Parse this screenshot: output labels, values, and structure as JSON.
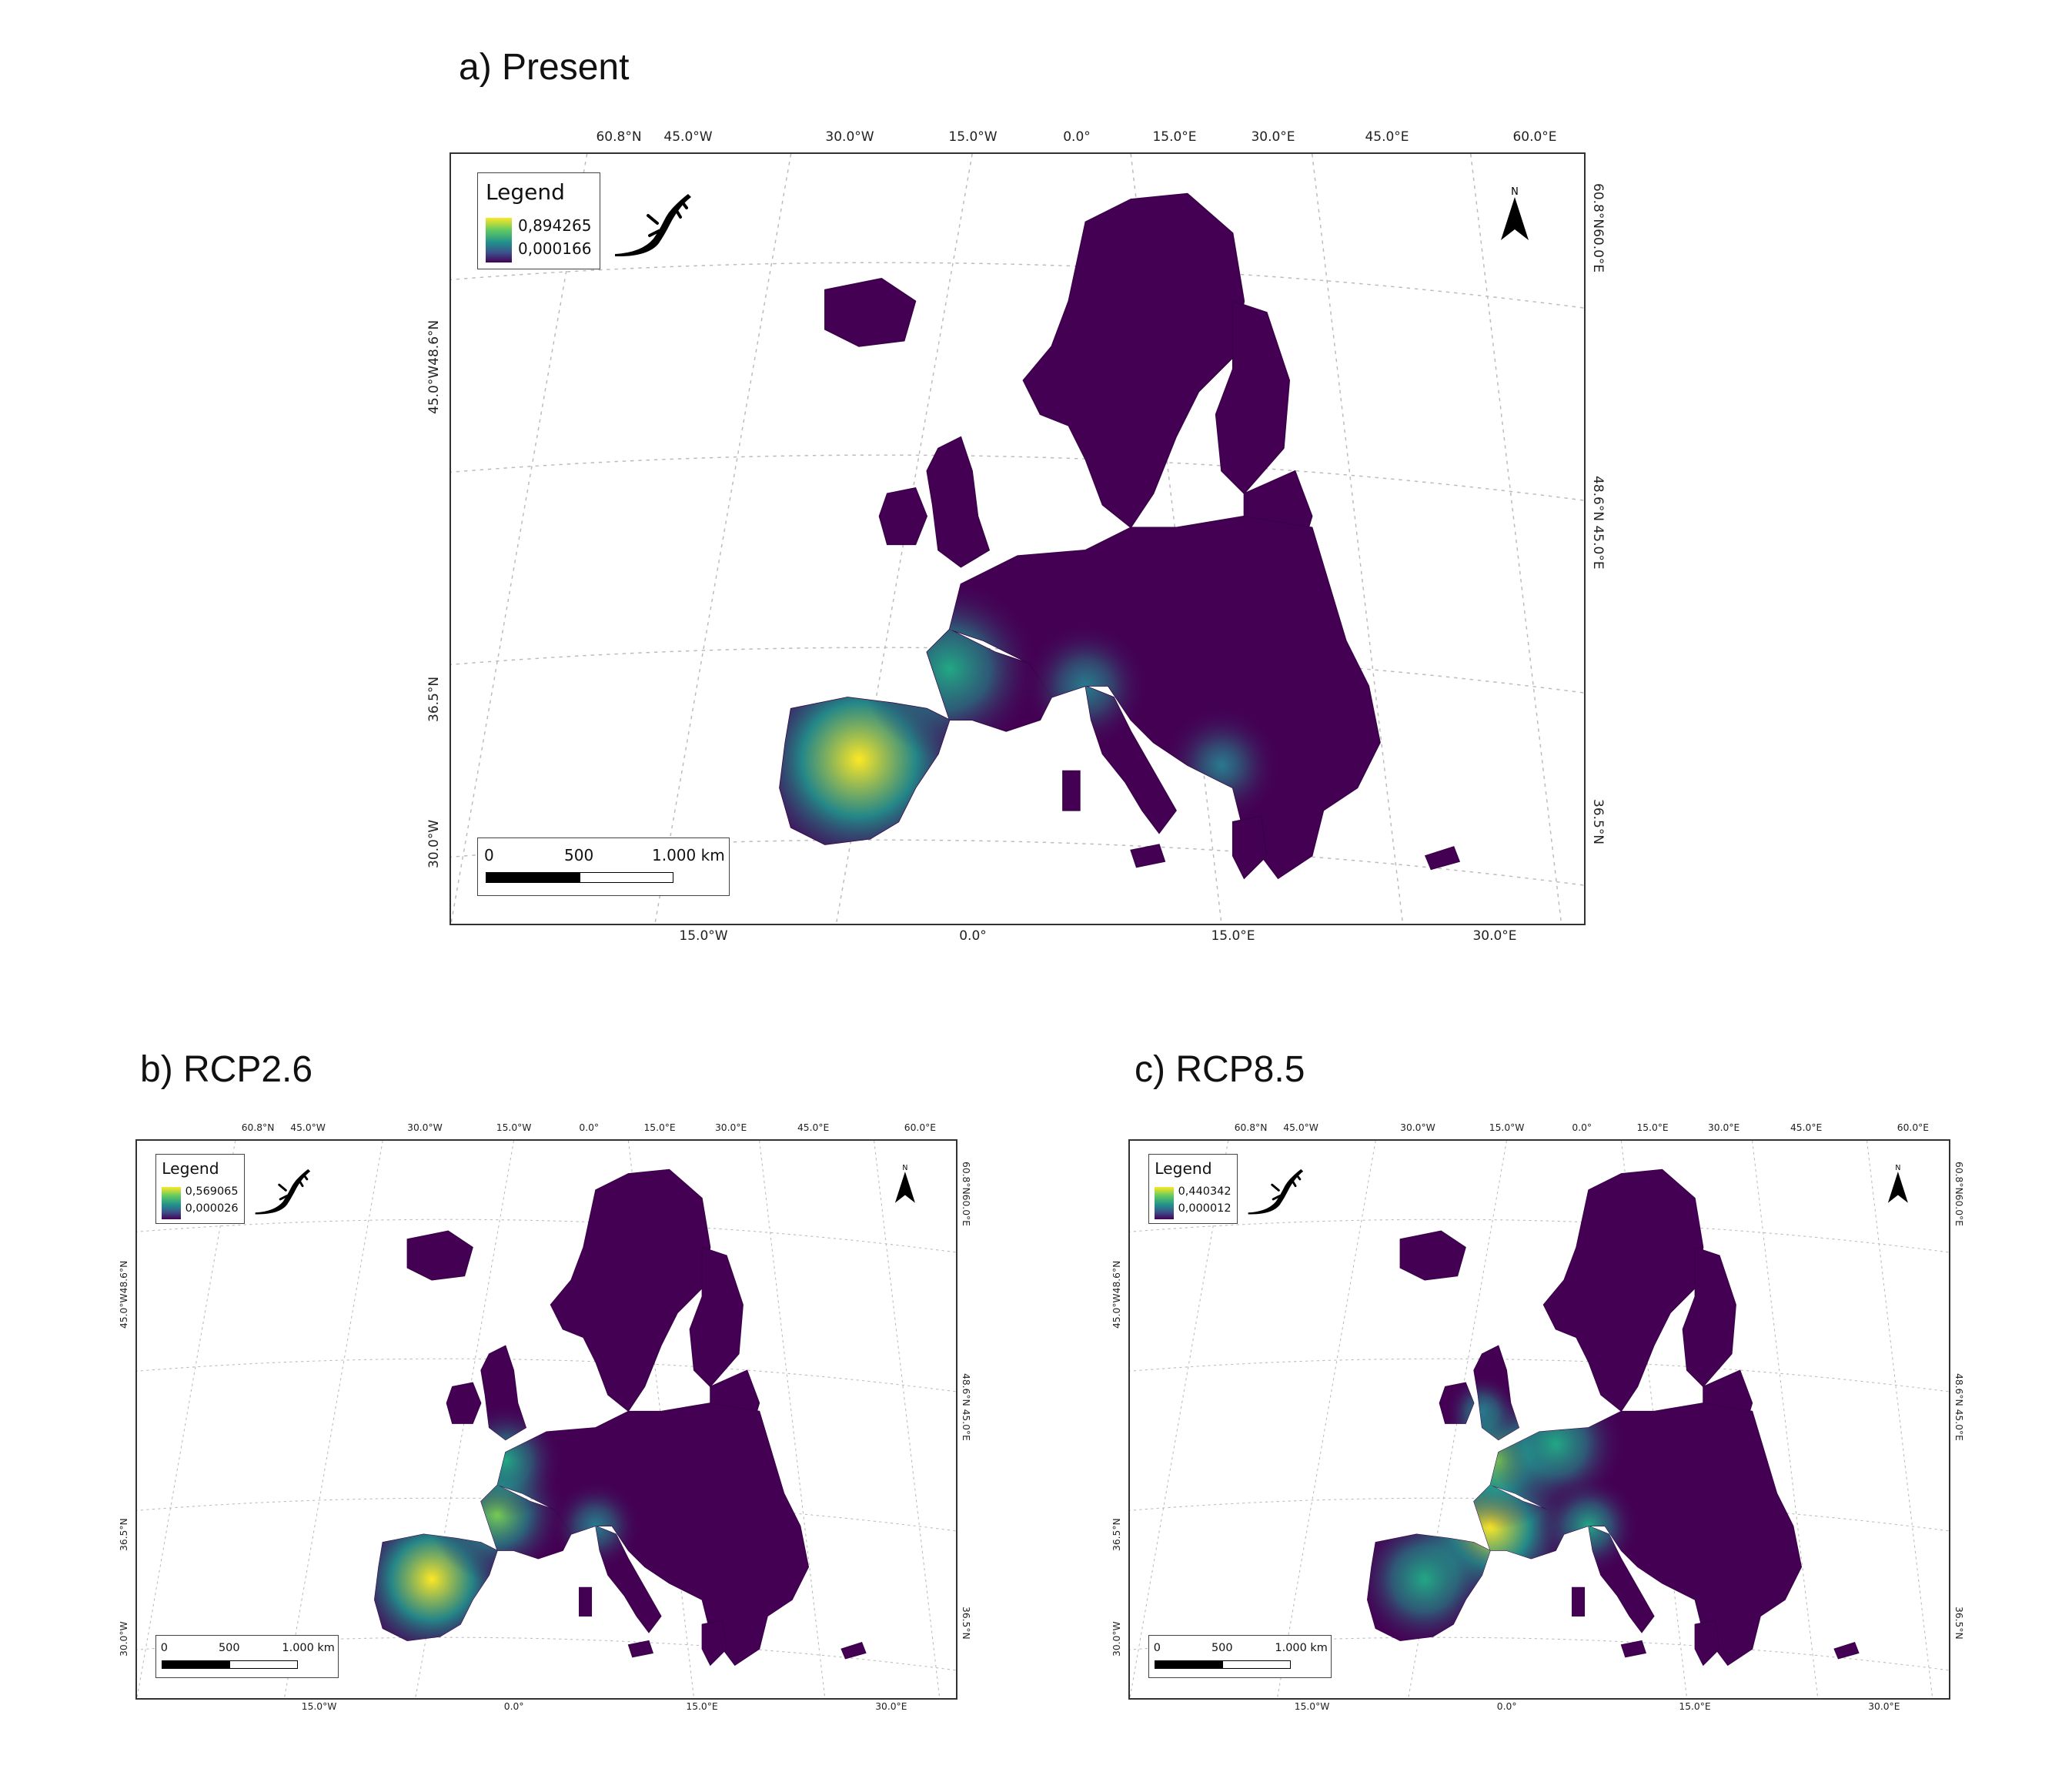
{
  "panels": [
    {
      "id": "a",
      "title": "a) Present",
      "legend": {
        "title": "Legend",
        "max": "0,894265",
        "min": "0,000166"
      },
      "scalebar": {
        "l0": "0",
        "l1": "500",
        "l2": "1.000 km"
      },
      "north": "N",
      "top_labels": [
        "60.8°N",
        "45.0°W",
        "30.0°W",
        "15.0°W",
        "0.0°",
        "15.0°E",
        "30.0°E",
        "45.0°E",
        "60.0°E"
      ],
      "bottom_labels": [
        "15.0°W",
        "0.0°",
        "15.0°E",
        "30.0°E"
      ],
      "left_labels": [
        "45.0°W48.6°N",
        "36.5°N",
        "30.0°W"
      ],
      "right_labels": [
        "60.8°N60.0°E",
        "48.6°N 45.0°E",
        "36.5°N"
      ],
      "hotspots": [
        {
          "region": "iberia",
          "intensity": 0.97
        },
        {
          "region": "france-southwest",
          "intensity": 0.55
        },
        {
          "region": "italy-north",
          "intensity": 0.3
        },
        {
          "region": "balkans",
          "intensity": 0.22
        }
      ]
    },
    {
      "id": "b",
      "title": "b) RCP2.6",
      "legend": {
        "title": "Legend",
        "max": "0,569065",
        "min": "0,000026"
      },
      "scalebar": {
        "l0": "0",
        "l1": "500",
        "l2": "1.000 km"
      },
      "north": "N",
      "top_labels": [
        "60.8°N",
        "45.0°W",
        "30.0°W",
        "15.0°W",
        "0.0°",
        "15.0°E",
        "30.0°E",
        "45.0°E",
        "60.0°E"
      ],
      "bottom_labels": [
        "15.0°W",
        "0.0°",
        "15.0°E",
        "30.0°E"
      ],
      "left_labels": [
        "45.0°W48.6°N",
        "36.5°N",
        "30.0°W"
      ],
      "right_labels": [
        "60.8°N60.0°E",
        "48.6°N 45.0°E",
        "36.5°N"
      ],
      "hotspots": [
        {
          "region": "iberia",
          "intensity": 0.95
        },
        {
          "region": "france-southwest",
          "intensity": 0.65
        },
        {
          "region": "france-north",
          "intensity": 0.45
        },
        {
          "region": "italy-north",
          "intensity": 0.3
        }
      ]
    },
    {
      "id": "c",
      "title": "c) RCP8.5",
      "legend": {
        "title": "Legend",
        "max": "0,440342",
        "min": "0,000012"
      },
      "scalebar": {
        "l0": "0",
        "l1": "500",
        "l2": "1.000 km"
      },
      "north": "N",
      "top_labels": [
        "60.8°N",
        "45.0°W",
        "30.0°W",
        "15.0°W",
        "0.0°",
        "15.0°E",
        "30.0°E",
        "45.0°E",
        "60.0°E"
      ],
      "bottom_labels": [
        "15.0°W",
        "0.0°",
        "15.0°E",
        "30.0°E"
      ],
      "left_labels": [
        "45.0°W48.6°N",
        "36.5°N",
        "30.0°W"
      ],
      "right_labels": [
        "60.8°N60.0°E",
        "48.6°N 45.0°E",
        "36.5°N"
      ],
      "hotspots": [
        {
          "region": "france-south",
          "intensity": 1.0
        },
        {
          "region": "france-north",
          "intensity": 0.75
        },
        {
          "region": "germany-west",
          "intensity": 0.55
        },
        {
          "region": "iberia",
          "intensity": 0.55
        },
        {
          "region": "italy-north",
          "intensity": 0.45
        },
        {
          "region": "uk-south",
          "intensity": 0.35
        }
      ]
    }
  ],
  "colors": {
    "viridis_low": "#440154",
    "viridis_mid": "#21918c",
    "viridis_high": "#fde725",
    "graticule": "#bbbbbb"
  }
}
